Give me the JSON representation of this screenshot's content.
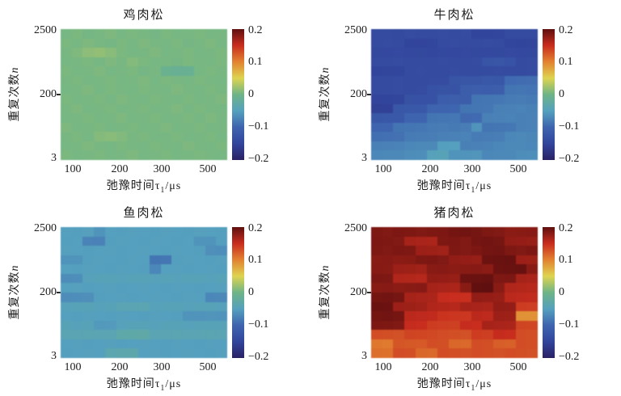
{
  "figure": {
    "colormap_name": "jet-muted",
    "colormap_stops": [
      "#2a2165",
      "#32459c",
      "#3e64af",
      "#55a0be",
      "#6eb487",
      "#ded450",
      "#e28230",
      "#c82d1e",
      "#5f0f0f"
    ]
  },
  "chart_data": [
    {
      "type": "heatmap",
      "title": "鸡肉松",
      "xlabel": "弛豫时间τ1/μs",
      "xlabel_parts": {
        "pre": "弛豫时间τ",
        "sub": "1",
        "suf": "/μs"
      },
      "ylabel": "重复次数n",
      "ylabel_parts": {
        "pre": "重复次数",
        "var": "n"
      },
      "x_ticks": [
        "100",
        "200",
        "300",
        "500"
      ],
      "y_ticks": [
        "2500",
        "200",
        "3"
      ],
      "colorbar_ticks": [
        "0.2",
        "0.1",
        "0",
        "−0.1",
        "−0.2"
      ],
      "vmin": -0.2,
      "vmax": 0.2,
      "values": [
        [
          0.004,
          0.006,
          0.003,
          0.005,
          0.007,
          0.004,
          0.006,
          0.005,
          0.003,
          0.006,
          0.004,
          0.005,
          0.006,
          0.004,
          0.005
        ],
        [
          0.006,
          0.004,
          0.007,
          0.005,
          0.003,
          0.006,
          0.004,
          0.007,
          0.005,
          0.004,
          0.006,
          0.003,
          0.005,
          0.007,
          0.004
        ],
        [
          0.005,
          0.008,
          0.014,
          0.016,
          0.012,
          0.006,
          0.004,
          0.005,
          0.007,
          0.004,
          0.005,
          0.006,
          0.004,
          0.005,
          0.006
        ],
        [
          0.004,
          0.005,
          0.006,
          0.004,
          0.007,
          0.005,
          0.01,
          0.006,
          0.004,
          0.005,
          0.003,
          0.006,
          0.005,
          0.004,
          0.006
        ],
        [
          0.006,
          0.004,
          0.005,
          0.007,
          0.004,
          0.005,
          0.006,
          0.003,
          0.005,
          -0.008,
          -0.012,
          -0.01,
          0.004,
          0.006,
          0.005
        ],
        [
          0.005,
          0.006,
          0.004,
          0.005,
          0.006,
          0.004,
          0.005,
          0.007,
          0.004,
          0.006,
          0.005,
          0.004,
          0.006,
          0.005,
          0.004
        ],
        [
          0.004,
          0.005,
          0.007,
          0.004,
          0.006,
          0.005,
          0.004,
          0.006,
          0.005,
          0.004,
          0.007,
          0.005,
          0.004,
          0.006,
          0.005
        ],
        [
          0.006,
          0.004,
          0.005,
          0.006,
          0.004,
          0.007,
          0.005,
          0.004,
          0.006,
          0.005,
          0.004,
          0.006,
          0.004,
          0.005,
          0.007
        ],
        [
          0.005,
          0.007,
          0.004,
          0.005,
          0.006,
          0.004,
          0.005,
          0.006,
          0.004,
          0.005,
          0.007,
          0.004,
          0.006,
          0.005,
          0.004
        ],
        [
          0.004,
          0.005,
          0.006,
          0.004,
          0.005,
          0.007,
          0.004,
          0.005,
          0.006,
          0.004,
          0.005,
          0.006,
          0.004,
          0.007,
          0.005
        ],
        [
          0.007,
          0.004,
          0.005,
          0.006,
          0.004,
          0.005,
          0.006,
          0.004,
          0.005,
          0.007,
          0.004,
          0.005,
          0.006,
          0.004,
          0.005
        ],
        [
          0.005,
          0.006,
          0.004,
          0.01,
          0.012,
          0.009,
          0.005,
          0.006,
          0.004,
          0.005,
          0.006,
          0.004,
          0.005,
          0.006,
          0.004
        ],
        [
          0.004,
          0.005,
          0.007,
          0.005,
          0.004,
          0.006,
          0.005,
          0.004,
          0.006,
          0.005,
          0.004,
          0.007,
          0.005,
          0.004,
          0.006
        ],
        [
          0.006,
          0.004,
          0.005,
          0.006,
          0.004,
          0.005,
          0.007,
          0.004,
          0.005,
          0.006,
          0.004,
          0.005,
          0.006,
          0.005,
          0.004
        ]
      ]
    },
    {
      "type": "heatmap",
      "title": "牛肉松",
      "xlabel": "弛豫时间τ1/μs",
      "xlabel_parts": {
        "pre": "弛豫时间τ",
        "sub": "1",
        "suf": "/μs"
      },
      "ylabel": "重复次数n",
      "ylabel_parts": {
        "pre": "重复次数",
        "var": "n"
      },
      "x_ticks": [
        "100",
        "200",
        "300",
        "500"
      ],
      "y_ticks": [
        "2500",
        "200",
        "3"
      ],
      "colorbar_ticks": [
        "0.2",
        "0.1",
        "0",
        "−0.1",
        "−0.2"
      ],
      "vmin": -0.2,
      "vmax": 0.2,
      "values": [
        [
          -0.14,
          -0.14,
          -0.142,
          -0.138,
          -0.14,
          -0.141,
          -0.139,
          -0.14,
          -0.138,
          -0.15,
          -0.15,
          -0.148,
          -0.14,
          -0.141,
          -0.14
        ],
        [
          -0.141,
          -0.139,
          -0.14,
          -0.15,
          -0.151,
          -0.148,
          -0.14,
          -0.139,
          -0.141,
          -0.14,
          -0.138,
          -0.14,
          -0.148,
          -0.15,
          -0.149
        ],
        [
          -0.144,
          -0.145,
          -0.143,
          -0.145,
          -0.144,
          -0.146,
          -0.144,
          -0.145,
          -0.143,
          -0.144,
          -0.145,
          -0.144,
          -0.143,
          -0.145,
          -0.144
        ],
        [
          -0.14,
          -0.141,
          -0.139,
          -0.14,
          -0.141,
          -0.14,
          -0.139,
          -0.14,
          -0.141,
          -0.138,
          -0.126,
          -0.125,
          -0.127,
          -0.14,
          -0.139
        ],
        [
          -0.15,
          -0.149,
          -0.148,
          -0.14,
          -0.139,
          -0.141,
          -0.14,
          -0.139,
          -0.14,
          -0.141,
          -0.14,
          -0.139,
          -0.141,
          -0.14,
          -0.139
        ],
        [
          -0.141,
          -0.14,
          -0.139,
          -0.14,
          -0.141,
          -0.139,
          -0.138,
          -0.126,
          -0.125,
          -0.124,
          -0.12,
          -0.121,
          -0.095,
          -0.093,
          -0.092
        ],
        [
          -0.14,
          -0.141,
          -0.139,
          -0.14,
          -0.138,
          -0.13,
          -0.128,
          -0.127,
          -0.112,
          -0.11,
          -0.111,
          -0.11,
          -0.086,
          -0.085,
          -0.087
        ],
        [
          -0.151,
          -0.15,
          -0.149,
          -0.131,
          -0.13,
          -0.129,
          -0.111,
          -0.11,
          -0.112,
          -0.086,
          -0.085,
          -0.084,
          -0.081,
          -0.08,
          -0.082
        ],
        [
          -0.156,
          -0.155,
          -0.121,
          -0.12,
          -0.119,
          -0.101,
          -0.1,
          -0.099,
          -0.086,
          -0.085,
          -0.084,
          -0.076,
          -0.075,
          -0.074,
          -0.076
        ],
        [
          -0.121,
          -0.12,
          -0.119,
          -0.101,
          -0.1,
          -0.086,
          -0.085,
          -0.084,
          -0.096,
          -0.095,
          -0.076,
          -0.075,
          -0.074,
          -0.076,
          -0.075
        ],
        [
          -0.101,
          -0.1,
          -0.086,
          -0.085,
          -0.084,
          -0.081,
          -0.08,
          -0.082,
          -0.079,
          -0.061,
          -0.086,
          -0.085,
          -0.084,
          -0.076,
          -0.075
        ],
        [
          -0.091,
          -0.09,
          -0.089,
          -0.081,
          -0.08,
          -0.079,
          -0.076,
          -0.075,
          -0.074,
          -0.081,
          -0.08,
          -0.079,
          -0.071,
          -0.07,
          -0.072
        ],
        [
          -0.076,
          -0.075,
          -0.074,
          -0.071,
          -0.07,
          -0.069,
          -0.051,
          -0.05,
          -0.076,
          -0.075,
          -0.074,
          -0.071,
          -0.07,
          -0.069,
          -0.071
        ],
        [
          -0.071,
          -0.07,
          -0.069,
          -0.066,
          -0.065,
          -0.046,
          -0.045,
          -0.061,
          -0.06,
          -0.059,
          -0.071,
          -0.07,
          -0.069,
          -0.066,
          -0.065
        ]
      ]
    },
    {
      "type": "heatmap",
      "title": "鱼肉松",
      "xlabel": "弛豫时间τ1/μs",
      "xlabel_parts": {
        "pre": "弛豫时间τ",
        "sub": "1",
        "suf": "/μs"
      },
      "ylabel": "重复次数n",
      "ylabel_parts": {
        "pre": "重复次数",
        "var": "n"
      },
      "x_ticks": [
        "100",
        "200",
        "300",
        "500"
      ],
      "y_ticks": [
        "2500",
        "200",
        "3"
      ],
      "colorbar_ticks": [
        "0.2",
        "0.1",
        "0",
        "−0.1",
        "−0.2"
      ],
      "vmin": -0.2,
      "vmax": 0.2,
      "values": [
        [
          -0.05,
          -0.051,
          -0.049,
          -0.061,
          -0.05,
          -0.051,
          -0.049,
          -0.05,
          -0.051,
          -0.049,
          -0.05,
          -0.051,
          -0.049,
          -0.05,
          -0.051
        ],
        [
          -0.051,
          -0.05,
          -0.074,
          -0.075,
          -0.051,
          -0.049,
          -0.05,
          -0.051,
          -0.049,
          -0.05,
          -0.051,
          -0.05,
          -0.061,
          -0.06,
          -0.051
        ],
        [
          -0.049,
          -0.05,
          -0.051,
          -0.05,
          -0.049,
          -0.051,
          -0.05,
          -0.049,
          -0.05,
          -0.051,
          -0.049,
          -0.05,
          -0.051,
          -0.064,
          -0.065
        ],
        [
          -0.061,
          -0.06,
          -0.051,
          -0.049,
          -0.05,
          -0.051,
          -0.049,
          -0.05,
          -0.086,
          -0.085,
          -0.051,
          -0.049,
          -0.05,
          -0.051,
          -0.049
        ],
        [
          -0.05,
          -0.051,
          -0.049,
          -0.05,
          -0.051,
          -0.049,
          -0.05,
          -0.051,
          -0.071,
          -0.05,
          -0.049,
          -0.051,
          -0.05,
          -0.049,
          -0.051
        ],
        [
          -0.066,
          -0.065,
          -0.046,
          -0.045,
          -0.044,
          -0.046,
          -0.045,
          -0.044,
          -0.046,
          -0.045,
          -0.046,
          -0.044,
          -0.045,
          -0.046,
          -0.045
        ],
        [
          -0.05,
          -0.049,
          -0.051,
          -0.05,
          -0.049,
          -0.051,
          -0.05,
          -0.049,
          -0.05,
          -0.051,
          -0.049,
          -0.05,
          -0.051,
          -0.05,
          -0.049
        ],
        [
          -0.066,
          -0.065,
          -0.064,
          -0.051,
          -0.05,
          -0.049,
          -0.051,
          -0.05,
          -0.049,
          -0.05,
          -0.051,
          -0.049,
          -0.05,
          -0.071,
          -0.07
        ],
        [
          -0.046,
          -0.045,
          -0.044,
          -0.046,
          -0.045,
          -0.041,
          -0.04,
          -0.039,
          -0.046,
          -0.045,
          -0.044,
          -0.046,
          -0.045,
          -0.044,
          -0.046
        ],
        [
          -0.05,
          -0.051,
          -0.049,
          -0.05,
          -0.051,
          -0.049,
          -0.05,
          -0.051,
          -0.049,
          -0.05,
          -0.051,
          -0.06,
          -0.061,
          -0.059,
          -0.06
        ],
        [
          -0.045,
          -0.046,
          -0.044,
          -0.056,
          -0.055,
          -0.046,
          -0.045,
          -0.044,
          -0.046,
          -0.045,
          -0.044,
          -0.046,
          -0.045,
          -0.044,
          -0.045
        ],
        [
          -0.041,
          -0.04,
          -0.039,
          -0.041,
          -0.04,
          -0.031,
          -0.03,
          -0.029,
          -0.041,
          -0.04,
          -0.039,
          -0.041,
          -0.04,
          -0.039,
          -0.04
        ],
        [
          -0.05,
          -0.049,
          -0.051,
          -0.05,
          -0.049,
          -0.051,
          -0.05,
          -0.049,
          -0.05,
          -0.051,
          -0.049,
          -0.05,
          -0.051,
          -0.049,
          -0.05
        ],
        [
          -0.051,
          -0.05,
          -0.049,
          -0.05,
          -0.036,
          -0.035,
          -0.034,
          -0.05,
          -0.049,
          -0.051,
          -0.05,
          -0.049,
          -0.05,
          -0.051,
          -0.049
        ]
      ]
    },
    {
      "type": "heatmap",
      "title": "猪肉松",
      "xlabel": "弛豫时间τ1/μs",
      "xlabel_parts": {
        "pre": "弛豫时间τ",
        "sub": "1",
        "suf": "/μs"
      },
      "ylabel": "重复次数n",
      "ylabel_parts": {
        "pre": "重复次数",
        "var": "n"
      },
      "x_ticks": [
        "100",
        "200",
        "300",
        "500"
      ],
      "y_ticks": [
        "2500",
        "200",
        "3"
      ],
      "colorbar_ticks": [
        "0.2",
        "0.1",
        "0",
        "−0.1",
        "−0.2"
      ],
      "vmin": -0.2,
      "vmax": 0.2,
      "values": [
        [
          0.185,
          0.184,
          0.186,
          0.185,
          0.184,
          0.185,
          0.186,
          0.19,
          0.191,
          0.189,
          0.185,
          0.184,
          0.179,
          0.18,
          0.181
        ],
        [
          0.186,
          0.185,
          0.184,
          0.166,
          0.165,
          0.164,
          0.185,
          0.186,
          0.184,
          0.19,
          0.191,
          0.189,
          0.176,
          0.175,
          0.174
        ],
        [
          0.185,
          0.184,
          0.186,
          0.185,
          0.171,
          0.17,
          0.169,
          0.185,
          0.184,
          0.186,
          0.19,
          0.191,
          0.185,
          0.184,
          0.186
        ],
        [
          0.18,
          0.181,
          0.179,
          0.18,
          0.185,
          0.186,
          0.184,
          0.176,
          0.175,
          0.174,
          0.194,
          0.195,
          0.196,
          0.171,
          0.17
        ],
        [
          0.181,
          0.18,
          0.171,
          0.17,
          0.169,
          0.18,
          0.181,
          0.179,
          0.18,
          0.181,
          0.179,
          0.194,
          0.195,
          0.196,
          0.18
        ],
        [
          0.186,
          0.185,
          0.161,
          0.16,
          0.159,
          0.176,
          0.175,
          0.174,
          0.194,
          0.195,
          0.196,
          0.185,
          0.186,
          0.166,
          0.165
        ],
        [
          0.18,
          0.181,
          0.179,
          0.18,
          0.181,
          0.166,
          0.165,
          0.164,
          0.18,
          0.199,
          0.2,
          0.18,
          0.161,
          0.16,
          0.159
        ],
        [
          0.19,
          0.191,
          0.189,
          0.166,
          0.165,
          0.164,
          0.151,
          0.15,
          0.149,
          0.176,
          0.175,
          0.174,
          0.156,
          0.155,
          0.154
        ],
        [
          0.195,
          0.194,
          0.171,
          0.17,
          0.169,
          0.161,
          0.16,
          0.159,
          0.166,
          0.165,
          0.164,
          0.176,
          0.175,
          0.141,
          0.14
        ],
        [
          0.19,
          0.191,
          0.189,
          0.156,
          0.155,
          0.154,
          0.146,
          0.145,
          0.144,
          0.156,
          0.155,
          0.171,
          0.17,
          0.091,
          0.09
        ],
        [
          0.186,
          0.185,
          0.184,
          0.151,
          0.15,
          0.141,
          0.14,
          0.139,
          0.151,
          0.15,
          0.166,
          0.165,
          0.164,
          0.136,
          0.135
        ],
        [
          0.131,
          0.13,
          0.129,
          0.136,
          0.135,
          0.134,
          0.131,
          0.13,
          0.129,
          0.141,
          0.14,
          0.151,
          0.15,
          0.131,
          0.13
        ],
        [
          0.106,
          0.105,
          0.126,
          0.125,
          0.124,
          0.131,
          0.13,
          0.116,
          0.115,
          0.131,
          0.13,
          0.121,
          0.12,
          0.131,
          0.13
        ],
        [
          0.111,
          0.11,
          0.131,
          0.13,
          0.116,
          0.115,
          0.131,
          0.13,
          0.129,
          0.131,
          0.13,
          0.129,
          0.131,
          0.13,
          0.129
        ]
      ]
    }
  ]
}
